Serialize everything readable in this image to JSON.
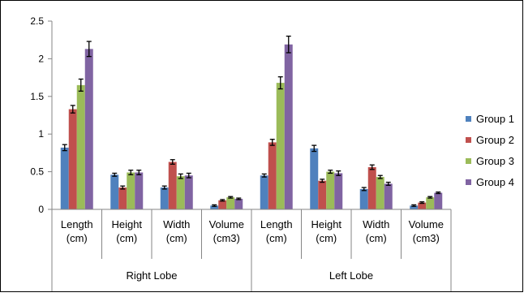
{
  "chart_data": {
    "type": "bar",
    "title": "",
    "xlabel": "",
    "ylabel": "",
    "ylim": [
      0,
      2.5
    ],
    "yticks": [
      "0",
      "0.5",
      "1",
      "1.5",
      "2",
      "2.5"
    ],
    "grid": false,
    "legend_position": "right",
    "groups": [
      {
        "label": "Right Lobe",
        "categories": [
          [
            "Length",
            "(cm)"
          ],
          [
            "Height",
            "(cm)"
          ],
          [
            "Width",
            "(cm)"
          ],
          [
            "Volume",
            "(cm3)"
          ]
        ]
      },
      {
        "label": "Left Lobe",
        "categories": [
          [
            "Length",
            "(cm)"
          ],
          [
            "Height",
            "(cm)"
          ],
          [
            "Width",
            "(cm)"
          ],
          [
            "Volume",
            "(cm3)"
          ]
        ]
      }
    ],
    "series": [
      {
        "name": "Group 1",
        "color": "#4F81BD",
        "values": [
          0.82,
          0.46,
          0.29,
          0.05,
          0.45,
          0.81,
          0.27,
          0.05
        ],
        "errors": [
          0.04,
          0.02,
          0.02,
          0.01,
          0.02,
          0.04,
          0.02,
          0.01
        ]
      },
      {
        "name": "Group 2",
        "color": "#C0504D",
        "values": [
          1.33,
          0.29,
          0.63,
          0.12,
          0.89,
          0.38,
          0.56,
          0.09
        ],
        "errors": [
          0.05,
          0.02,
          0.03,
          0.01,
          0.04,
          0.02,
          0.03,
          0.01
        ]
      },
      {
        "name": "Group 3",
        "color": "#9BBB59",
        "values": [
          1.65,
          0.49,
          0.44,
          0.16,
          1.68,
          0.5,
          0.43,
          0.16
        ],
        "errors": [
          0.08,
          0.03,
          0.03,
          0.01,
          0.08,
          0.02,
          0.02,
          0.01
        ]
      },
      {
        "name": "Group 4",
        "color": "#8064A2",
        "values": [
          2.13,
          0.49,
          0.45,
          0.14,
          2.19,
          0.48,
          0.34,
          0.22
        ],
        "errors": [
          0.1,
          0.03,
          0.03,
          0.01,
          0.11,
          0.03,
          0.02,
          0.01
        ]
      }
    ]
  }
}
